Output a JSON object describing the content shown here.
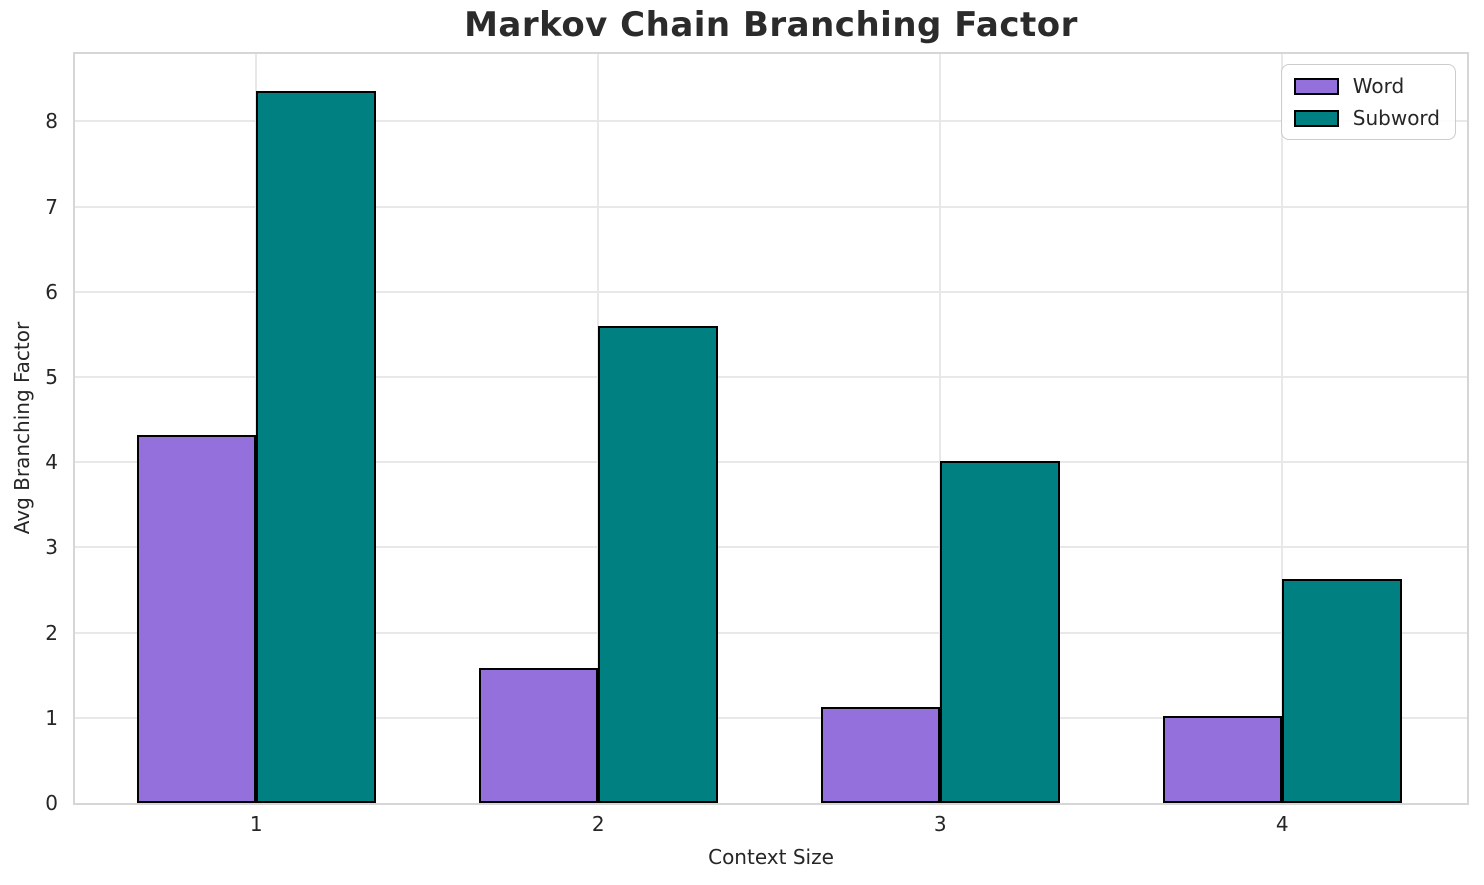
{
  "colors": {
    "background": "#ffffff",
    "text": "#262626",
    "gridline": "#e8e8e8",
    "spine": "#d6d6d6",
    "legend_border": "#cccccc",
    "word_purple": "#9370DB",
    "subword_teal": "#008080",
    "bar_edge": "#000000"
  },
  "chart_data": {
    "type": "bar",
    "title": "Markov Chain Branching Factor",
    "xlabel": "Context Size",
    "ylabel": "Avg Branching Factor",
    "categories": [
      "1",
      "2",
      "3",
      "4"
    ],
    "series": [
      {
        "name": "Word",
        "color": "#9370DB",
        "values": [
          4.32,
          1.59,
          1.13,
          1.02
        ]
      },
      {
        "name": "Subword",
        "color": "#008080",
        "values": [
          8.36,
          5.6,
          4.01,
          2.63
        ]
      }
    ],
    "bar_width": 0.35,
    "bar_edge_color": "#000000",
    "ylim": [
      0,
      8.79
    ],
    "xlim": [
      -0.53,
      3.54
    ],
    "yticks": [
      0,
      1,
      2,
      3,
      4,
      5,
      6,
      7,
      8
    ],
    "grid": true,
    "legend": {
      "position": "upper-right"
    }
  }
}
